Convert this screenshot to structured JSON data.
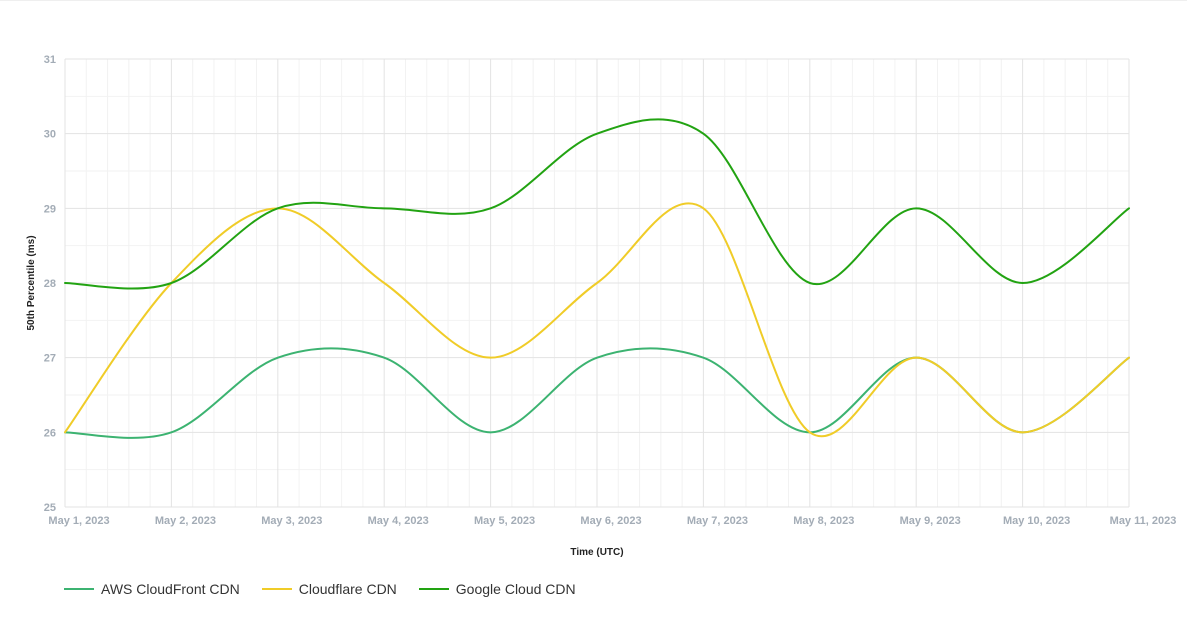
{
  "chart_data": {
    "type": "line",
    "title": "",
    "xlabel": "Time (UTC)",
    "ylabel": "50th Percentile (ms)",
    "categories": [
      "May 1, 2023",
      "May 2, 2023",
      "May 3, 2023",
      "May 4, 2023",
      "May 5, 2023",
      "May 6, 2023",
      "May 7, 2023",
      "May 8, 2023",
      "May 9, 2023",
      "May 10, 2023",
      "May 11, 2023"
    ],
    "ylim": [
      25,
      31
    ],
    "yticks": [
      "25",
      "26",
      "27",
      "28",
      "29",
      "30",
      "31"
    ],
    "grid": true,
    "legend_position": "bottom-left",
    "series": [
      {
        "name": "AWS CloudFront CDN",
        "color": "#3cb371",
        "values": [
          26,
          26,
          27,
          27,
          26,
          27,
          27,
          26,
          27,
          26,
          27
        ]
      },
      {
        "name": "Cloudflare CDN",
        "color": "#f0cc28",
        "values": [
          26,
          28,
          29,
          28,
          27,
          28,
          29,
          26,
          27,
          26,
          27
        ]
      },
      {
        "name": "Google Cloud CDN",
        "color": "#22a312",
        "values": [
          28,
          28,
          29,
          29,
          29,
          30,
          30,
          28,
          29,
          28,
          29
        ]
      }
    ]
  }
}
